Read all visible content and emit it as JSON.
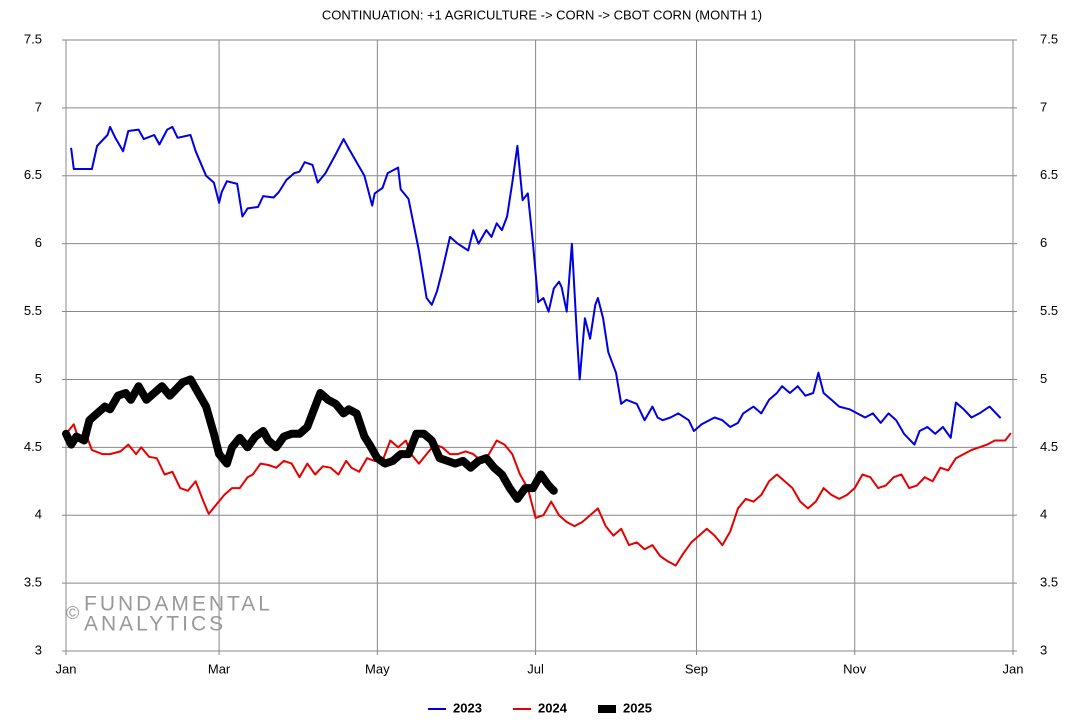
{
  "chart_data": {
    "type": "line",
    "title": "CONTINUATION: +1 AGRICULTURE -> CORN -> CBOT CORN (MONTH 1)",
    "watermark": {
      "symbol": "©",
      "lines": [
        "FUNDAMENTAL",
        "ANALYTICS"
      ]
    },
    "xlim": [
      0,
      365
    ],
    "xticks": [
      {
        "value": 0,
        "label": "Jan"
      },
      {
        "value": 59,
        "label": "Mar"
      },
      {
        "value": 120,
        "label": "May"
      },
      {
        "value": 181,
        "label": "Jul"
      },
      {
        "value": 243,
        "label": "Sep"
      },
      {
        "value": 304,
        "label": "Nov"
      },
      {
        "value": 365,
        "label": "Jan"
      }
    ],
    "ylim": [
      3,
      7.5
    ],
    "yticks": [
      3,
      3.5,
      4,
      4.5,
      5,
      5.5,
      6,
      6.5,
      7,
      7.5
    ],
    "grid": true,
    "legend": "bottom",
    "series": [
      {
        "name": "2023",
        "color": "#0000e6",
        "line_width": 2,
        "x": [
          2,
          3,
          7,
          10,
          12,
          16,
          17,
          19,
          22,
          24,
          28,
          30,
          34,
          36,
          39,
          41,
          43,
          48,
          50,
          54,
          57,
          59,
          60,
          62,
          66,
          68,
          70,
          74,
          76,
          80,
          82,
          85,
          88,
          90,
          92,
          95,
          97,
          100,
          104,
          107,
          109,
          112,
          115,
          118,
          119,
          122,
          124,
          128,
          129,
          132,
          136,
          139,
          141,
          143,
          145,
          148,
          151,
          155,
          157,
          159,
          162,
          164,
          166,
          168,
          170,
          172,
          174,
          176,
          178,
          180,
          182,
          184,
          186,
          188,
          190,
          191,
          193,
          195,
          197,
          198,
          200,
          202,
          204,
          205,
          207,
          209,
          212,
          214,
          216,
          220,
          223,
          226,
          228,
          230,
          233,
          236,
          240,
          242,
          245,
          250,
          253,
          256,
          259,
          261,
          265,
          268,
          271,
          274,
          276,
          279,
          282,
          285,
          288,
          290,
          292,
          295,
          298,
          302,
          305,
          308,
          311,
          314,
          317,
          320,
          323,
          327,
          329,
          332,
          335,
          338,
          341,
          343,
          346,
          349,
          352,
          356,
          360
        ],
        "values": [
          6.7,
          6.55,
          6.55,
          6.55,
          6.72,
          6.8,
          6.86,
          6.78,
          6.68,
          6.83,
          6.84,
          6.77,
          6.8,
          6.73,
          6.84,
          6.86,
          6.78,
          6.8,
          6.68,
          6.5,
          6.45,
          6.3,
          6.38,
          6.46,
          6.44,
          6.2,
          6.26,
          6.27,
          6.35,
          6.34,
          6.38,
          6.47,
          6.52,
          6.53,
          6.6,
          6.58,
          6.45,
          6.52,
          6.66,
          6.77,
          6.7,
          6.6,
          6.5,
          6.28,
          6.37,
          6.41,
          6.52,
          6.56,
          6.4,
          6.33,
          5.95,
          5.6,
          5.55,
          5.65,
          5.8,
          6.05,
          6.0,
          5.95,
          6.1,
          6.0,
          6.1,
          6.05,
          6.15,
          6.1,
          6.2,
          6.45,
          6.72,
          6.32,
          6.37,
          6.0,
          5.57,
          5.6,
          5.5,
          5.67,
          5.72,
          5.68,
          5.5,
          6.0,
          5.3,
          5.0,
          5.45,
          5.3,
          5.55,
          5.6,
          5.45,
          5.2,
          5.05,
          4.82,
          4.85,
          4.82,
          4.7,
          4.8,
          4.72,
          4.7,
          4.72,
          4.75,
          4.7,
          4.62,
          4.67,
          4.72,
          4.7,
          4.65,
          4.68,
          4.75,
          4.8,
          4.75,
          4.85,
          4.9,
          4.95,
          4.9,
          4.95,
          4.88,
          4.9,
          5.05,
          4.9,
          4.85,
          4.8,
          4.78,
          4.75,
          4.72,
          4.75,
          4.68,
          4.75,
          4.7,
          4.6,
          4.52,
          4.62,
          4.65,
          4.6,
          4.65,
          4.57,
          4.83,
          4.78,
          4.72,
          4.75,
          4.8,
          4.72
        ]
      },
      {
        "name": "2024",
        "color": "#e60000",
        "line_width": 2,
        "x": [
          0,
          3,
          5,
          8,
          10,
          14,
          17,
          21,
          24,
          27,
          29,
          32,
          35,
          38,
          41,
          44,
          47,
          50,
          53,
          55,
          58,
          61,
          64,
          67,
          70,
          72,
          75,
          78,
          81,
          84,
          87,
          90,
          93,
          96,
          99,
          102,
          105,
          108,
          110,
          113,
          116,
          119,
          122,
          125,
          128,
          131,
          133,
          136,
          139,
          142,
          145,
          148,
          151,
          154,
          157,
          160,
          163,
          166,
          169,
          172,
          175,
          178,
          181,
          184,
          187,
          190,
          193,
          196,
          199,
          202,
          205,
          208,
          211,
          214,
          217,
          220,
          223,
          226,
          229,
          232,
          235,
          238,
          241,
          244,
          247,
          250,
          253,
          256,
          259,
          262,
          265,
          268,
          271,
          274,
          277,
          280,
          283,
          286,
          289,
          292,
          295,
          298,
          301,
          304,
          307,
          310,
          313,
          316,
          319,
          322,
          325,
          328,
          331,
          334,
          337,
          340,
          343,
          346,
          349,
          352,
          355,
          358,
          362,
          364
        ],
        "values": [
          4.6,
          4.67,
          4.55,
          4.58,
          4.48,
          4.45,
          4.45,
          4.47,
          4.52,
          4.45,
          4.5,
          4.43,
          4.42,
          4.3,
          4.32,
          4.2,
          4.18,
          4.25,
          4.1,
          4.01,
          4.08,
          4.15,
          4.2,
          4.2,
          4.28,
          4.3,
          4.38,
          4.37,
          4.35,
          4.4,
          4.38,
          4.28,
          4.38,
          4.3,
          4.36,
          4.35,
          4.3,
          4.4,
          4.35,
          4.32,
          4.42,
          4.4,
          4.4,
          4.55,
          4.5,
          4.55,
          4.45,
          4.38,
          4.45,
          4.52,
          4.5,
          4.45,
          4.45,
          4.47,
          4.45,
          4.4,
          4.45,
          4.55,
          4.52,
          4.45,
          4.3,
          4.2,
          3.98,
          4.0,
          4.1,
          4.0,
          3.95,
          3.92,
          3.95,
          4.0,
          4.05,
          3.92,
          3.85,
          3.9,
          3.78,
          3.8,
          3.75,
          3.78,
          3.7,
          3.66,
          3.63,
          3.72,
          3.8,
          3.85,
          3.9,
          3.85,
          3.78,
          3.88,
          4.05,
          4.12,
          4.1,
          4.15,
          4.25,
          4.3,
          4.25,
          4.2,
          4.1,
          4.05,
          4.1,
          4.2,
          4.15,
          4.12,
          4.15,
          4.2,
          4.3,
          4.28,
          4.2,
          4.22,
          4.28,
          4.3,
          4.2,
          4.22,
          4.28,
          4.25,
          4.35,
          4.33,
          4.42,
          4.45,
          4.48,
          4.5,
          4.52,
          4.55,
          4.55,
          4.6
        ]
      },
      {
        "name": "2025",
        "color": "#000000",
        "line_width": 8,
        "x": [
          0,
          2,
          4,
          7,
          9,
          12,
          15,
          17,
          20,
          23,
          25,
          28,
          31,
          34,
          37,
          40,
          42,
          45,
          48,
          51,
          54,
          57,
          59,
          62,
          64,
          67,
          70,
          73,
          76,
          78,
          81,
          84,
          87,
          90,
          93,
          96,
          98,
          101,
          104,
          107,
          109,
          112,
          115,
          117,
          120,
          123,
          126,
          129,
          132,
          135,
          138,
          141,
          144,
          147,
          150,
          153,
          156,
          159,
          162,
          165,
          168,
          171,
          174,
          177,
          180,
          183,
          186,
          188
        ],
        "values": [
          4.6,
          4.52,
          4.58,
          4.55,
          4.7,
          4.75,
          4.8,
          4.78,
          4.88,
          4.9,
          4.85,
          4.95,
          4.85,
          4.9,
          4.95,
          4.88,
          4.92,
          4.98,
          5.0,
          4.9,
          4.8,
          4.6,
          4.45,
          4.38,
          4.5,
          4.57,
          4.5,
          4.58,
          4.62,
          4.55,
          4.5,
          4.58,
          4.6,
          4.6,
          4.65,
          4.8,
          4.9,
          4.85,
          4.82,
          4.75,
          4.78,
          4.75,
          4.58,
          4.52,
          4.42,
          4.38,
          4.4,
          4.45,
          4.45,
          4.6,
          4.6,
          4.55,
          4.42,
          4.4,
          4.38,
          4.4,
          4.35,
          4.4,
          4.42,
          4.35,
          4.3,
          4.2,
          4.12,
          4.2,
          4.2,
          4.3,
          4.22,
          4.18
        ]
      }
    ]
  }
}
